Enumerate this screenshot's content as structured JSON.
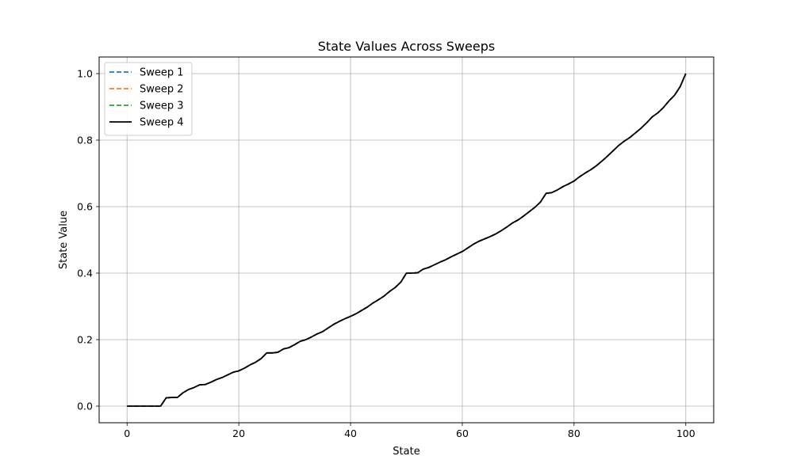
{
  "chart_data": {
    "type": "line",
    "title": "State Values Across Sweeps",
    "xlabel": "State",
    "ylabel": "State Value",
    "xlim": [
      -5,
      105
    ],
    "ylim": [
      -0.05,
      1.05
    ],
    "xticks": [
      0,
      20,
      40,
      60,
      80,
      100
    ],
    "yticks": [
      0.0,
      0.2,
      0.4,
      0.6,
      0.8,
      1.0
    ],
    "xtick_labels": [
      "0",
      "20",
      "40",
      "60",
      "80",
      "100"
    ],
    "ytick_labels": [
      "0.0",
      "0.2",
      "0.4",
      "0.6",
      "0.8",
      "1.0"
    ],
    "grid": true,
    "legend": "top-left",
    "x": [
      0,
      1,
      2,
      3,
      4,
      5,
      6,
      7,
      8,
      9,
      10,
      11,
      12,
      13,
      14,
      15,
      16,
      17,
      18,
      19,
      20,
      21,
      22,
      23,
      24,
      25,
      26,
      27,
      28,
      29,
      30,
      31,
      32,
      33,
      34,
      35,
      36,
      37,
      38,
      39,
      40,
      41,
      42,
      43,
      44,
      45,
      46,
      47,
      48,
      49,
      50,
      51,
      52,
      53,
      54,
      55,
      56,
      57,
      58,
      59,
      60,
      61,
      62,
      63,
      64,
      65,
      66,
      67,
      68,
      69,
      70,
      71,
      72,
      73,
      74,
      75,
      76,
      77,
      78,
      79,
      80,
      81,
      82,
      83,
      84,
      85,
      86,
      87,
      88,
      89,
      90,
      91,
      92,
      93,
      94,
      95,
      96,
      97,
      98,
      99,
      100
    ],
    "series": [
      {
        "name": "Sweep 1",
        "color": "#1f77b4",
        "dash": "dashed",
        "values": [
          0,
          0,
          0,
          0,
          0,
          0,
          0,
          0.025,
          0.026,
          0.026,
          0.04,
          0.05,
          0.056,
          0.064,
          0.065,
          0.072,
          0.08,
          0.086,
          0.094,
          0.102,
          0.106,
          0.114,
          0.124,
          0.132,
          0.143,
          0.16,
          0.16,
          0.162,
          0.172,
          0.176,
          0.185,
          0.195,
          0.2,
          0.208,
          0.217,
          0.224,
          0.235,
          0.246,
          0.255,
          0.263,
          0.27,
          0.278,
          0.288,
          0.298,
          0.31,
          0.32,
          0.331,
          0.345,
          0.357,
          0.373,
          0.4,
          0.4,
          0.401,
          0.412,
          0.417,
          0.425,
          0.433,
          0.44,
          0.449,
          0.457,
          0.465,
          0.476,
          0.487,
          0.496,
          0.503,
          0.51,
          0.518,
          0.528,
          0.539,
          0.551,
          0.56,
          0.572,
          0.585,
          0.598,
          0.614,
          0.64,
          0.642,
          0.65,
          0.66,
          0.668,
          0.677,
          0.69,
          0.701,
          0.711,
          0.723,
          0.737,
          0.752,
          0.768,
          0.784,
          0.797,
          0.808,
          0.822,
          0.836,
          0.852,
          0.87,
          0.882,
          0.898,
          0.918,
          0.935,
          0.961,
          1.0
        ]
      },
      {
        "name": "Sweep 2",
        "color": "#ff7f0e",
        "dash": "dashed",
        "values": [
          0,
          0,
          0,
          0,
          0,
          0,
          0,
          0.025,
          0.026,
          0.026,
          0.04,
          0.05,
          0.056,
          0.064,
          0.065,
          0.072,
          0.08,
          0.086,
          0.094,
          0.102,
          0.106,
          0.114,
          0.124,
          0.132,
          0.143,
          0.16,
          0.16,
          0.162,
          0.172,
          0.176,
          0.185,
          0.195,
          0.2,
          0.208,
          0.217,
          0.224,
          0.235,
          0.246,
          0.255,
          0.263,
          0.27,
          0.278,
          0.288,
          0.298,
          0.31,
          0.32,
          0.331,
          0.345,
          0.357,
          0.373,
          0.4,
          0.4,
          0.401,
          0.412,
          0.417,
          0.425,
          0.433,
          0.44,
          0.449,
          0.457,
          0.465,
          0.476,
          0.487,
          0.496,
          0.503,
          0.51,
          0.518,
          0.528,
          0.539,
          0.551,
          0.56,
          0.572,
          0.585,
          0.598,
          0.614,
          0.64,
          0.642,
          0.65,
          0.66,
          0.668,
          0.677,
          0.69,
          0.701,
          0.711,
          0.723,
          0.737,
          0.752,
          0.768,
          0.784,
          0.797,
          0.808,
          0.822,
          0.836,
          0.852,
          0.87,
          0.882,
          0.898,
          0.918,
          0.935,
          0.961,
          1.0
        ]
      },
      {
        "name": "Sweep 3",
        "color": "#2ca02c",
        "dash": "dashed",
        "values": [
          0,
          0,
          0,
          0,
          0,
          0,
          0,
          0.025,
          0.026,
          0.026,
          0.04,
          0.05,
          0.056,
          0.064,
          0.065,
          0.072,
          0.08,
          0.086,
          0.094,
          0.102,
          0.106,
          0.114,
          0.124,
          0.132,
          0.143,
          0.16,
          0.16,
          0.162,
          0.172,
          0.176,
          0.185,
          0.195,
          0.2,
          0.208,
          0.217,
          0.224,
          0.235,
          0.246,
          0.255,
          0.263,
          0.27,
          0.278,
          0.288,
          0.298,
          0.31,
          0.32,
          0.331,
          0.345,
          0.357,
          0.373,
          0.4,
          0.4,
          0.401,
          0.412,
          0.417,
          0.425,
          0.433,
          0.44,
          0.449,
          0.457,
          0.465,
          0.476,
          0.487,
          0.496,
          0.503,
          0.51,
          0.518,
          0.528,
          0.539,
          0.551,
          0.56,
          0.572,
          0.585,
          0.598,
          0.614,
          0.64,
          0.642,
          0.65,
          0.66,
          0.668,
          0.677,
          0.69,
          0.701,
          0.711,
          0.723,
          0.737,
          0.752,
          0.768,
          0.784,
          0.797,
          0.808,
          0.822,
          0.836,
          0.852,
          0.87,
          0.882,
          0.898,
          0.918,
          0.935,
          0.961,
          1.0
        ]
      },
      {
        "name": "Sweep 4",
        "color": "#000000",
        "dash": "solid",
        "values": [
          0,
          0,
          0,
          0,
          0,
          0,
          0,
          0.025,
          0.026,
          0.026,
          0.04,
          0.05,
          0.056,
          0.064,
          0.065,
          0.072,
          0.08,
          0.086,
          0.094,
          0.102,
          0.106,
          0.114,
          0.124,
          0.132,
          0.143,
          0.16,
          0.16,
          0.162,
          0.172,
          0.176,
          0.185,
          0.195,
          0.2,
          0.208,
          0.217,
          0.224,
          0.235,
          0.246,
          0.255,
          0.263,
          0.27,
          0.278,
          0.288,
          0.298,
          0.31,
          0.32,
          0.331,
          0.345,
          0.357,
          0.373,
          0.4,
          0.4,
          0.401,
          0.412,
          0.417,
          0.425,
          0.433,
          0.44,
          0.449,
          0.457,
          0.465,
          0.476,
          0.487,
          0.496,
          0.503,
          0.51,
          0.518,
          0.528,
          0.539,
          0.551,
          0.56,
          0.572,
          0.585,
          0.598,
          0.614,
          0.64,
          0.642,
          0.65,
          0.66,
          0.668,
          0.677,
          0.69,
          0.701,
          0.711,
          0.723,
          0.737,
          0.752,
          0.768,
          0.784,
          0.797,
          0.808,
          0.822,
          0.836,
          0.852,
          0.87,
          0.882,
          0.898,
          0.918,
          0.935,
          0.961,
          1.0
        ]
      }
    ]
  }
}
